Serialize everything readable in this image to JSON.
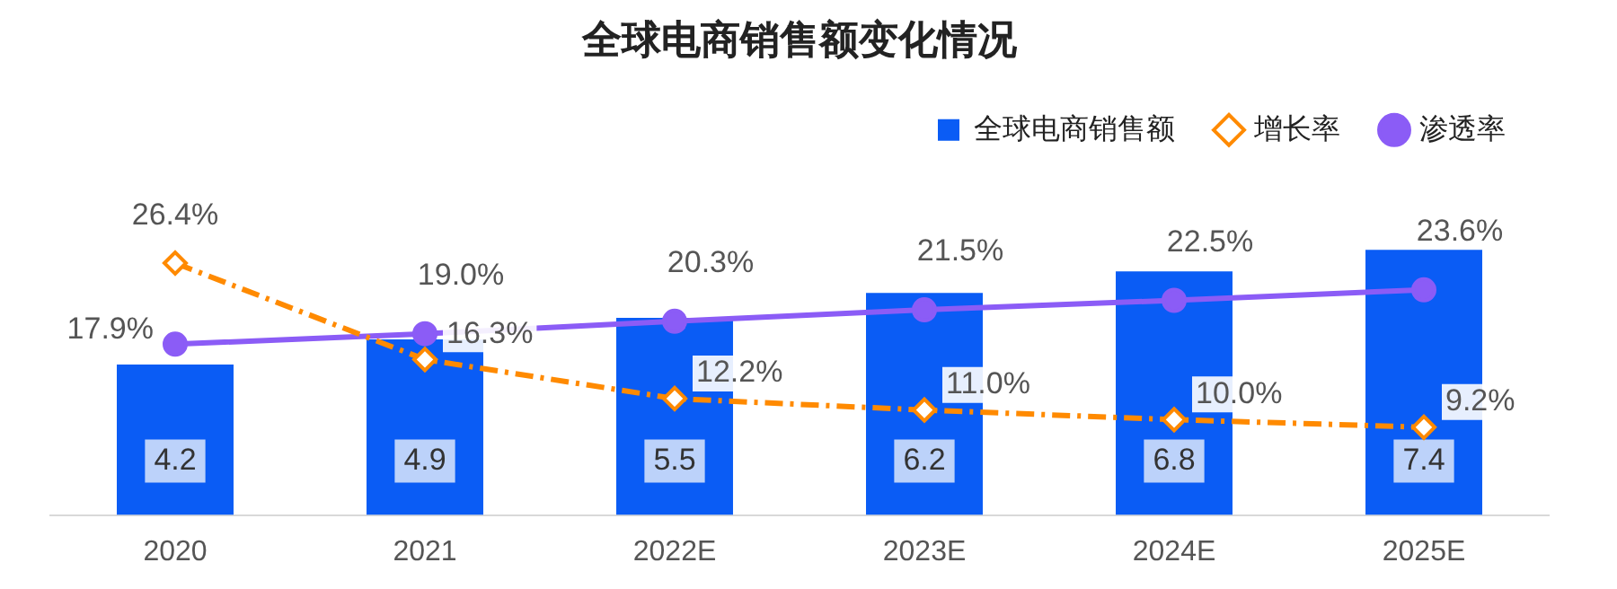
{
  "chart_data": {
    "type": "bar",
    "title": "全球电商销售额变化情况",
    "categories": [
      "2020",
      "2021",
      "2022E",
      "2023E",
      "2024E",
      "2025E"
    ],
    "legend": "top",
    "series": [
      {
        "name": "全球电商销售额",
        "color": "#0a5cf5",
        "values": [
          4.2,
          4.9,
          5.5,
          6.2,
          6.8,
          7.4
        ],
        "value_labels": [
          "4.2",
          "4.9",
          "5.5",
          "6.2",
          "6.8",
          "7.4"
        ]
      },
      {
        "name": "增长率",
        "type": "line",
        "axis": "y2",
        "color": "#ff8a00",
        "line_style": "dashed",
        "marker": "diamond",
        "values": [
          26.4,
          16.3,
          12.2,
          11.0,
          10.0,
          9.2
        ],
        "value_labels": [
          "26.4%",
          "16.3%",
          "12.2%",
          "11.0%",
          "10.0%",
          "9.2%"
        ]
      },
      {
        "name": "渗透率",
        "type": "line",
        "axis": "y2",
        "color": "#8b5cf6",
        "line_style": "solid",
        "marker": "circle",
        "values": [
          17.9,
          19.0,
          20.3,
          21.5,
          22.5,
          23.6
        ],
        "value_labels": [
          "17.9%",
          "19.0%",
          "20.3%",
          "21.5%",
          "22.5%",
          "23.6%"
        ]
      }
    ]
  }
}
